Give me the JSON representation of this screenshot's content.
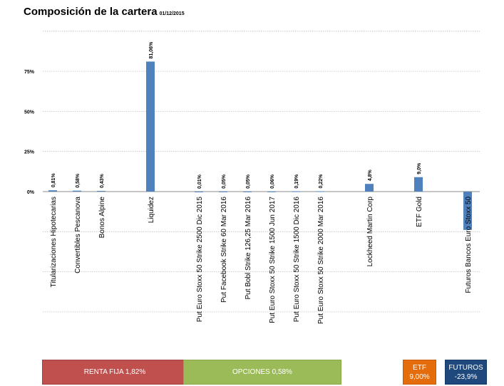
{
  "header": {
    "title": "Composición de la cartera",
    "date": "01/12/2015"
  },
  "chart_data": {
    "type": "bar",
    "categories": [
      "Titularizaciones Hipotecarias",
      "Convertibles Pescanova",
      "Bonos Alpine",
      "Liquidez",
      "Put Euro Stoxx 50 Strike 2500 Dic 2015",
      "Put Facebook Strike 60 Mar 2016",
      "Put Bobl Strike 126,25 Mar 2016",
      "Put Euro Stoxx 50 Strike 1500 Jun 2017",
      "Put Euro Stoxx 50 Strike 1500 Dic 2016",
      "Put Euro Stoxx 50 Strike 2000 Mar 2016",
      "Lockheed Martin Corp",
      "ETF Gold",
      "Futuros Bancos Euro Stoxx 50"
    ],
    "values": [
      0.81,
      0.58,
      0.43,
      81.06,
      0.01,
      0.05,
      0.05,
      0.06,
      0.19,
      0.22,
      4.8,
      9.0,
      -23.9
    ],
    "value_labels": [
      "0,81%",
      "0,58%",
      "0,43%",
      "81,06%",
      "0,01%",
      "0,05%",
      "0,05%",
      "0,06%",
      "0,19%",
      "0,22%",
      "4,8%",
      "9,0%",
      ""
    ],
    "y_ticks": [
      0,
      25,
      50,
      75
    ],
    "y_tick_labels": [
      "0%",
      "25%",
      "50%",
      "75%"
    ],
    "ylim": [
      -75,
      100
    ],
    "grid": true,
    "bar_color": "#4f81bd"
  },
  "groups": [
    {
      "label": "RENTA FIJA 1,82%",
      "color": "#c0504d"
    },
    {
      "label": "OPCIONES 0,58%",
      "color": "#9bbb59"
    },
    {
      "label": "ETF",
      "value": "9,00%",
      "color": "#e46c0a"
    },
    {
      "label": "FUTUROS",
      "value": "-23,9%",
      "color": "#1f497d"
    }
  ]
}
